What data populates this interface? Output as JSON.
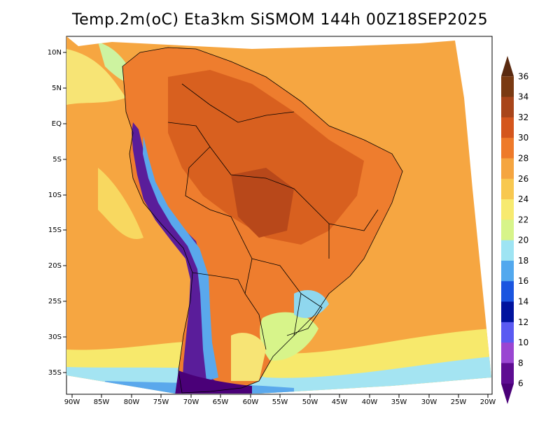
{
  "title": "Temp.2m(oC) Eta3km SiSMOM 144h 00Z18SEP2025",
  "latitude_labels": [
    "10N",
    "5N",
    "EQ",
    "5S",
    "10S",
    "15S",
    "20S",
    "25S",
    "30S",
    "35S"
  ],
  "longitude_labels": [
    "90W",
    "85W",
    "80W",
    "75W",
    "70W",
    "65W",
    "60W",
    "55W",
    "50W",
    "45W",
    "40W",
    "35W",
    "30W",
    "25W",
    "20W"
  ],
  "colorbar": {
    "labels": [
      "36",
      "34",
      "32",
      "30",
      "28",
      "26",
      "24",
      "22",
      "20",
      "18",
      "16",
      "14",
      "12",
      "10",
      "8",
      "6"
    ],
    "bands": [
      {
        "color": "#5a2a10"
      },
      {
        "color": "#7a3a12"
      },
      {
        "color": "#a8451a"
      },
      {
        "color": "#d4561d"
      },
      {
        "color": "#ee7a2a"
      },
      {
        "color": "#f5a540"
      },
      {
        "color": "#f8c850"
      },
      {
        "color": "#f7ea70"
      },
      {
        "color": "#d7f48a"
      },
      {
        "color": "#9ee4f3"
      },
      {
        "color": "#52a8ee"
      },
      {
        "color": "#1a55e0"
      },
      {
        "color": "#00139e"
      },
      {
        "color": "#5a5af2"
      },
      {
        "color": "#9a46d2"
      },
      {
        "color": "#5e0c92"
      },
      {
        "color": "#4a0078"
      }
    ]
  },
  "colors": {
    "ocean": "#f6a641",
    "land": "#ee7d2e",
    "hot": "#d45a1e",
    "andes": "#5a1d9a",
    "south": "#8fd7ee"
  }
}
